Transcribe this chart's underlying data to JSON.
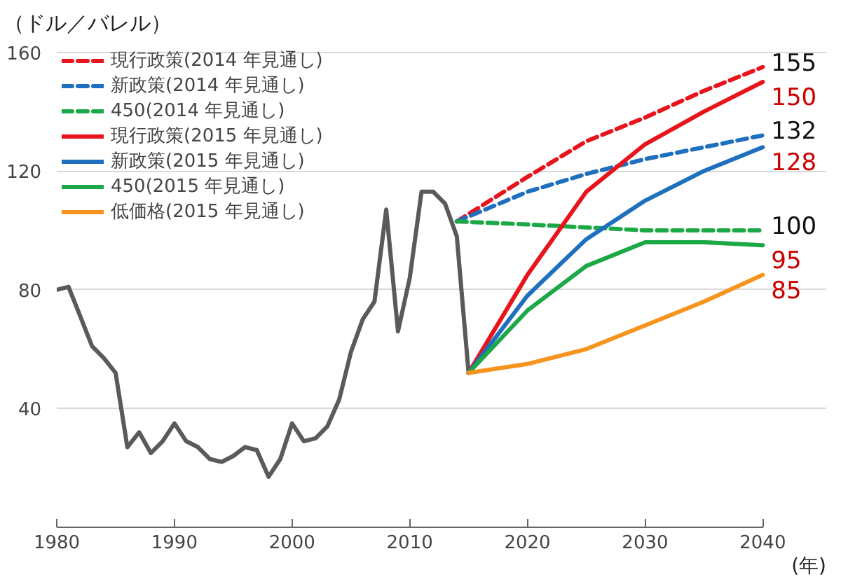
{
  "chart_data": {
    "type": "line",
    "ylabel": "（ドル／バレル）",
    "xlabel": "(年)",
    "xlim": [
      1980,
      2040
    ],
    "ylim": [
      0,
      160
    ],
    "xticks": [
      1980,
      1990,
      2000,
      2010,
      2020,
      2030,
      2040
    ],
    "yticks": [
      40,
      80,
      120,
      160
    ],
    "grid": "y",
    "legend": "top left",
    "marker": "none",
    "series": [
      {
        "color": "#5a5a5a",
        "line_style": "solid",
        "x": [
          1980,
          1981,
          1982,
          1983,
          1984,
          1985,
          1986,
          1987,
          1988,
          1989,
          1990,
          1991,
          1992,
          1993,
          1994,
          1995,
          1996,
          1997,
          1998,
          1999,
          2000,
          2001,
          2002,
          2003,
          2004,
          2005,
          2006,
          2007,
          2008,
          2009,
          2010,
          2011,
          2012,
          2013,
          2014,
          2015
        ],
        "values": [
          80,
          81,
          71,
          61,
          57,
          52,
          27,
          32,
          25,
          29,
          35,
          29,
          27,
          23,
          22,
          24,
          27,
          26,
          17,
          23,
          35,
          29,
          30,
          34,
          43,
          59,
          70,
          76,
          107,
          66,
          84,
          113,
          113,
          109,
          98,
          52
        ]
      },
      {
        "name": "現行政策(2014 年見通し)",
        "color": "#e8141b",
        "line_style": "dashed",
        "x": [
          2014,
          2020,
          2025,
          2030,
          2035,
          2040
        ],
        "values": [
          103,
          118,
          130,
          138,
          147,
          155
        ],
        "value_labels": [
          null,
          null,
          null,
          null,
          null,
          "155"
        ]
      },
      {
        "name": "新政策(2014 年見通し)",
        "color": "#1f6fbf",
        "line_style": "dashed",
        "x": [
          2014,
          2020,
          2025,
          2030,
          2035,
          2040
        ],
        "values": [
          103,
          113,
          119,
          124,
          128,
          132
        ],
        "value_labels": [
          null,
          null,
          null,
          null,
          null,
          "132"
        ]
      },
      {
        "name": "450(2014 年見通し)",
        "color": "#1ca847",
        "line_style": "dashed",
        "x": [
          2014,
          2020,
          2025,
          2030,
          2035,
          2040
        ],
        "values": [
          103,
          102,
          101,
          100,
          100,
          100
        ],
        "value_labels": [
          null,
          null,
          null,
          null,
          null,
          "100"
        ]
      },
      {
        "name": "現行政策(2015 年見通し)",
        "color": "#e8141b",
        "line_style": "solid",
        "x": [
          2015,
          2020,
          2025,
          2030,
          2035,
          2040
        ],
        "values": [
          52,
          85,
          113,
          129,
          140,
          150
        ],
        "value_labels": [
          null,
          null,
          null,
          null,
          null,
          "150"
        ]
      },
      {
        "name": "新政策(2015 年見通し)",
        "color": "#1f6fbf",
        "line_style": "solid",
        "x": [
          2015,
          2020,
          2025,
          2030,
          2035,
          2040
        ],
        "values": [
          52,
          78,
          97,
          110,
          120,
          128
        ],
        "value_labels": [
          null,
          null,
          null,
          null,
          null,
          "128"
        ]
      },
      {
        "name": "450(2015 年見通し)",
        "color": "#1ca847",
        "line_style": "solid",
        "x": [
          2015,
          2020,
          2025,
          2030,
          2035,
          2040
        ],
        "values": [
          52,
          73,
          88,
          96,
          96,
          95
        ],
        "value_labels": [
          null,
          null,
          null,
          null,
          null,
          "95"
        ]
      },
      {
        "name": "低価格(2015 年見通し)",
        "color": "#f7941d",
        "line_style": "solid",
        "x": [
          2015,
          2020,
          2025,
          2030,
          2035,
          2040
        ],
        "values": [
          52,
          55,
          60,
          68,
          76,
          85
        ],
        "value_labels": [
          null,
          null,
          null,
          null,
          null,
          "85"
        ]
      }
    ]
  }
}
